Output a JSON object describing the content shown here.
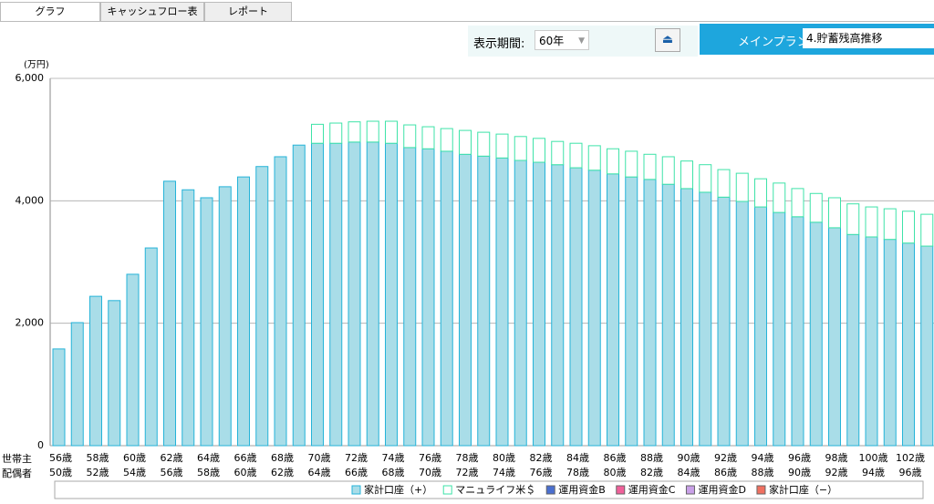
{
  "tabs": [
    "グラフ",
    "キャッシュフロー表",
    "レポート"
  ],
  "toolbar": {
    "period_label": "表示期間:",
    "period_value": "60年",
    "plan_label": "メインプラン：",
    "plan_value": "4.貯蓄残高推移"
  },
  "chart_data": {
    "type": "stacked-bar",
    "y_unit": "(万円)",
    "row_labels": [
      "世帯主",
      "配偶者"
    ],
    "categories": [
      "56歳",
      null,
      "58歳",
      null,
      "60歳",
      null,
      "62歳",
      null,
      "64歳",
      null,
      "66歳",
      null,
      "68歳",
      null,
      "70歳",
      null,
      "72歳",
      null,
      "74歳",
      null,
      "76歳",
      null,
      "78歳",
      null,
      "80歳",
      null,
      "82歳",
      null,
      "84歳",
      null,
      "86歳",
      null,
      "88歳",
      null,
      "90歳",
      null,
      "92歳",
      null,
      "94歳",
      null,
      "96歳",
      null,
      "98歳",
      null,
      "100歳",
      null,
      "102歳",
      null
    ],
    "spouse_labels": [
      "50歳",
      null,
      "52歳",
      null,
      "54歳",
      null,
      "56歳",
      null,
      "58歳",
      null,
      "60歳",
      null,
      "62歳",
      null,
      "64歳",
      null,
      "66歳",
      null,
      "68歳",
      null,
      "70歳",
      null,
      "72歳",
      null,
      "74歳",
      null,
      "76歳",
      null,
      "78歳",
      null,
      "80歳",
      null,
      "82歳",
      null,
      "84歳",
      null,
      "86歳",
      null,
      "88歳",
      null,
      "90歳",
      null,
      "92歳",
      null,
      "94歳",
      null,
      "96歳",
      null
    ],
    "series": [
      {
        "name": "家計口座（+）",
        "color": "#a9dde8",
        "stroke": "#25b3d8",
        "values": [
          1580,
          2010,
          2440,
          2370,
          2800,
          3230,
          4320,
          4180,
          4050,
          4230,
          4390,
          4560,
          4720,
          4910,
          4940,
          4940,
          4960,
          4960,
          4940,
          4870,
          4850,
          4810,
          4760,
          4730,
          4700,
          4660,
          4630,
          4590,
          4540,
          4500,
          4440,
          4390,
          4350,
          4270,
          4200,
          4140,
          4060,
          3990,
          3900,
          3810,
          3740,
          3650,
          3560,
          3450,
          3410,
          3370,
          3310,
          3260
        ]
      },
      {
        "name": "マニュライフ米＄",
        "color": "#ffffff",
        "stroke": "#3ee3a8",
        "values": [
          0,
          0,
          0,
          0,
          0,
          0,
          0,
          0,
          0,
          0,
          0,
          0,
          0,
          0,
          310,
          330,
          330,
          340,
          360,
          370,
          360,
          370,
          390,
          390,
          390,
          390,
          390,
          380,
          400,
          400,
          410,
          420,
          410,
          450,
          450,
          450,
          450,
          460,
          460,
          480,
          460,
          470,
          490,
          500,
          490,
          500,
          520,
          520
        ]
      }
    ],
    "extra_legend": [
      {
        "name": "運用資金B",
        "color": "#4a6fd0"
      },
      {
        "name": "運用資金C",
        "color": "#f0609a"
      },
      {
        "name": "運用資金D",
        "color": "#c9a0e8"
      },
      {
        "name": "家計口座（−）",
        "color": "#f07060"
      }
    ],
    "ylim": [
      0,
      6000
    ],
    "yticks": [
      0,
      {
        "value": 2000,
        "label": "2,000"
      },
      {
        "value": 4000,
        "label": "4,000"
      },
      {
        "value": 6000,
        "label": "6,000"
      }
    ],
    "grid": true
  }
}
